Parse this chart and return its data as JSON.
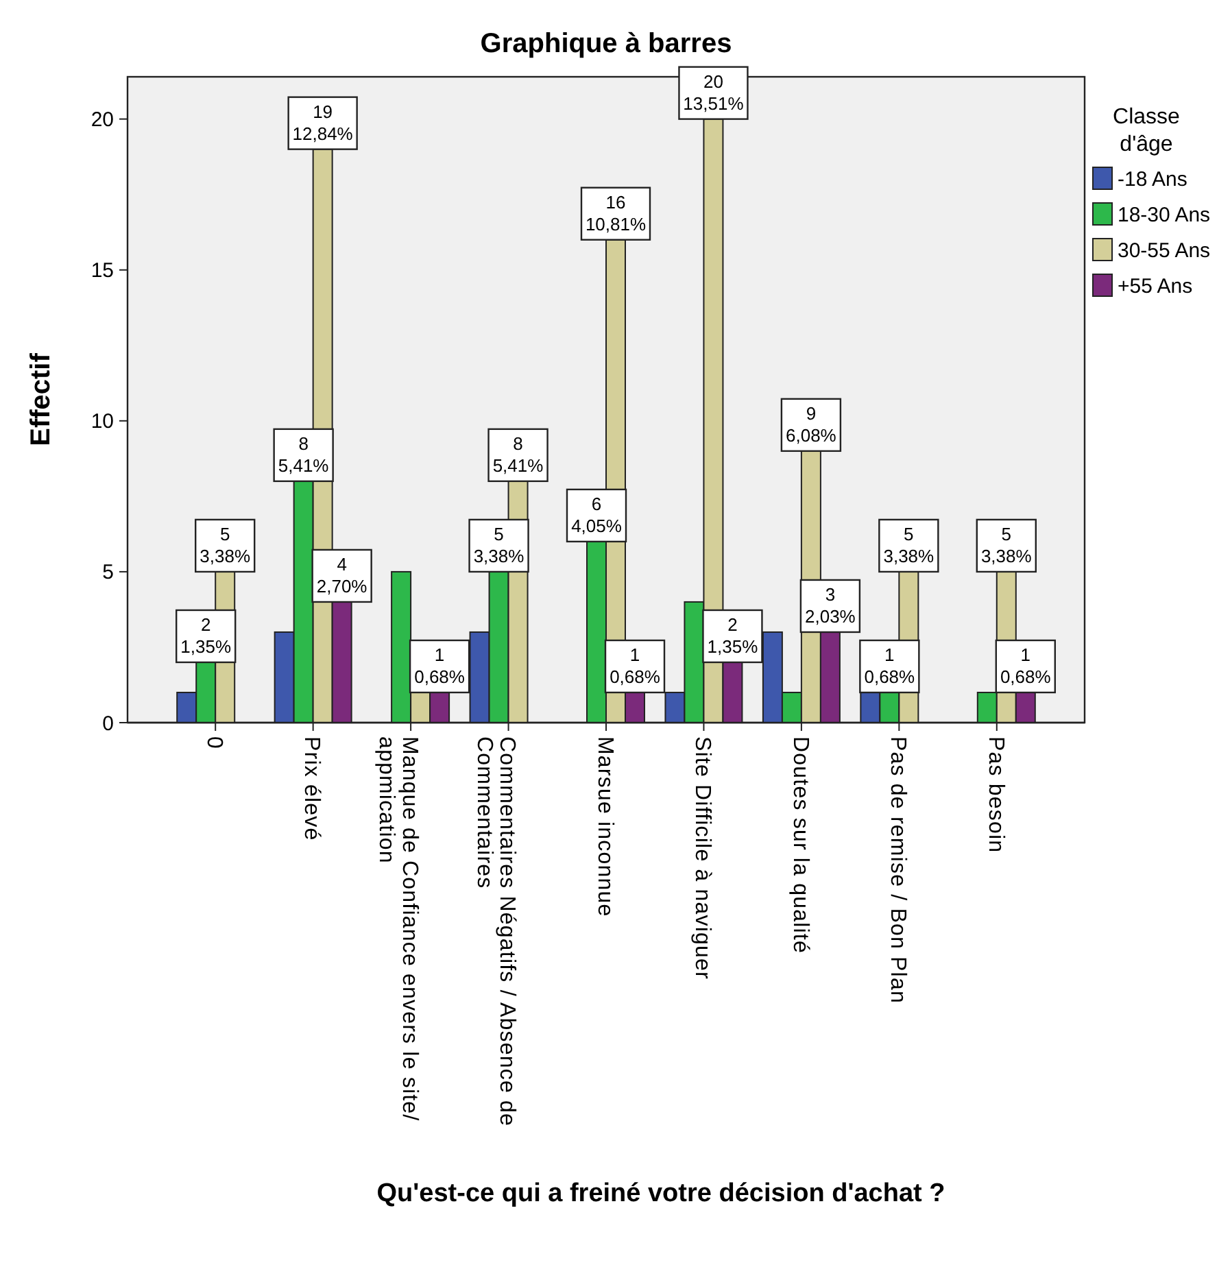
{
  "chart_data": {
    "type": "bar",
    "title": "Graphique à barres",
    "xlabel": "Qu'est-ce qui a freiné votre décision d'achat ?",
    "ylabel": "Effectif",
    "legend_title": "Classe d'âge",
    "legend": "right",
    "grid": false,
    "categories": [
      "0",
      "Prix élevé",
      "Manque de Confiance envers le site/ appmication",
      "Commentaires Négatifs / Absence de Commentaires",
      "Marsue inconnue",
      "Site Difficile à naviguer",
      "Doutes sur la qualité",
      "Pas de remise / Bon Plan",
      "Pas besoin"
    ],
    "ylim": [
      0,
      21.4
    ],
    "yticks": [
      0,
      5,
      10,
      15,
      20
    ],
    "series": [
      {
        "name": "-18 Ans",
        "color": "#3e58ac",
        "values": [
          1,
          3,
          0,
          3,
          0,
          1,
          3,
          1,
          0
        ],
        "value_labels": [
          null,
          null,
          null,
          null,
          null,
          null,
          null,
          null,
          null
        ]
      },
      {
        "name": "18-30 Ans",
        "color": "#2db84b",
        "values": [
          2,
          8,
          5,
          5,
          6,
          4,
          1,
          1,
          1
        ],
        "value_labels": [
          "2\n1,35%",
          "8\n5,41%",
          null,
          "5\n3,38%",
          "6\n4,05%",
          null,
          null,
          "1\n0,68%",
          null
        ]
      },
      {
        "name": "30-55 Ans",
        "color": "#d4cf99",
        "values": [
          5,
          19,
          1,
          8,
          16,
          20,
          9,
          5,
          5
        ],
        "value_labels": [
          "5\n3,38%",
          "19\n12,84%",
          null,
          "8\n5,41%",
          "16\n10,81%",
          "20\n13,51%",
          "9\n6,08%",
          "5\n3,38%",
          "5\n3,38%"
        ]
      },
      {
        "name": "+55 Ans",
        "color": "#7b2a7b",
        "values": [
          0,
          4,
          1,
          0,
          1,
          2,
          3,
          0,
          1
        ],
        "value_labels": [
          null,
          "4\n2,70%",
          "1\n0,68%",
          null,
          "1\n0,68%",
          "2\n1,35%",
          "3\n2,03%",
          null,
          "1\n0,68%"
        ]
      }
    ]
  }
}
